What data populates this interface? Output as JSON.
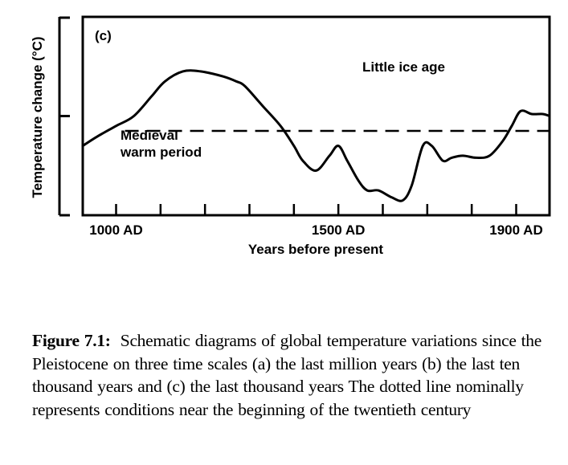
{
  "chart_data": {
    "type": "line",
    "panel_label": "(c)",
    "title": "",
    "xlabel": "Years before present",
    "ylabel": "Temperature change (°C)",
    "x_tick_labels": [
      "1000 AD",
      "1500 AD",
      "1900 AD"
    ],
    "x_labeled_ticks": [
      1000,
      1500,
      1900
    ],
    "x_minor_ticks": [
      1000,
      1100,
      1200,
      1300,
      1400,
      1500,
      1600,
      1700,
      1800,
      1900
    ],
    "xlim": [
      925,
      1975
    ],
    "ylim": [
      -1,
      1
    ],
    "y_ticks": [
      -1,
      0,
      1
    ],
    "y_tick_labels": [],
    "grid": false,
    "legend": "none",
    "reference_line": {
      "name": "early twentieth century baseline",
      "y": -0.15,
      "style": "dashed"
    },
    "series": [
      {
        "name": "Global temperature variation (schematic)",
        "x": [
          925,
          960,
          1000,
          1040,
          1080,
          1110,
          1150,
          1190,
          1240,
          1270,
          1290,
          1330,
          1370,
          1400,
          1420,
          1450,
          1480,
          1500,
          1520,
          1545,
          1565,
          1590,
          1620,
          1645,
          1665,
          1690,
          1710,
          1735,
          1755,
          1780,
          1810,
          1840,
          1870,
          1890,
          1910,
          1935,
          1960,
          1975
        ],
        "values": [
          -0.3,
          -0.2,
          -0.1,
          0.0,
          0.2,
          0.35,
          0.45,
          0.45,
          0.4,
          0.35,
          0.3,
          0.1,
          -0.1,
          -0.3,
          -0.45,
          -0.55,
          -0.4,
          -0.3,
          -0.45,
          -0.65,
          -0.75,
          -0.75,
          -0.82,
          -0.85,
          -0.7,
          -0.3,
          -0.3,
          -0.45,
          -0.42,
          -0.4,
          -0.42,
          -0.4,
          -0.25,
          -0.1,
          0.05,
          0.02,
          0.02,
          0.0
        ]
      }
    ],
    "annotations": [
      {
        "text": "Medieval",
        "x": 1000,
        "y": -0.3
      },
      {
        "text": "warm period",
        "x": 1000,
        "y": -0.5
      },
      {
        "text": "Little ice age",
        "x": 1600,
        "y": 0.45
      }
    ]
  },
  "caption": {
    "label": "Figure 7.1:",
    "text": "Schematic diagrams of global temperature variations since the Pleistocene on three time scales (a) the last million years (b) the last ten thousand years and (c) the last thousand years The dotted line nominally represents conditions near the beginning of the twentieth century"
  }
}
